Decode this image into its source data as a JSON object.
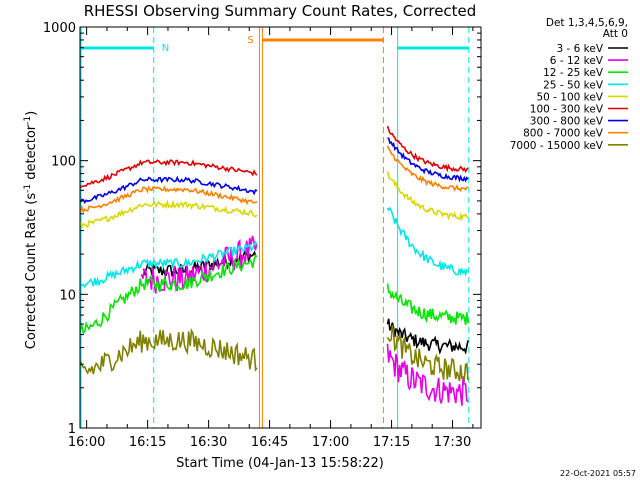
{
  "chart_data": {
    "type": "line",
    "title": "RHESSI Observing Summary Count Rates, Corrected",
    "ylabel": "Corrected Count Rate (s",
    "ylabel_sup": "-1",
    "ylabel_tail": " detector",
    "ylabel_sup2": "-1",
    "ylabel_close": ")",
    "xlabel": "Start Time (04-Jan-13 15:58:22)",
    "y_scale": "log",
    "ylim": [
      1,
      1000
    ],
    "xlim": [
      "15:58:22",
      "17:37:00"
    ],
    "y_ticks": [
      "1",
      "10",
      "100",
      "1000"
    ],
    "x_ticks": [
      "16:00",
      "16:15",
      "16:30",
      "16:45",
      "17:00",
      "17:15",
      "17:30"
    ],
    "timestamp": "22-Oct-2021 05:57",
    "legend_header": [
      "Det 1,3,4,5,6,9,",
      "Att 0"
    ],
    "series": [
      {
        "name": "3 - 6 keV",
        "color": "#000000"
      },
      {
        "name": "6 - 12 keV",
        "color": "#e600e6"
      },
      {
        "name": "12 - 25 keV",
        "color": "#00e600"
      },
      {
        "name": "25 - 50 keV",
        "color": "#00e6e6"
      },
      {
        "name": "50 - 100 keV",
        "color": "#d8d800"
      },
      {
        "name": "100 - 300 keV",
        "color": "#e00000"
      },
      {
        "name": "300 - 800 keV",
        "color": "#0000e6"
      },
      {
        "name": "800 - 7000 keV",
        "color": "#ff8000"
      },
      {
        "name": "7000 - 15000 keV",
        "color": "#808000"
      }
    ],
    "flags": [
      {
        "label": "N",
        "color": "#00e6e6"
      },
      {
        "label": "S",
        "color": "#ff8000"
      }
    ]
  }
}
